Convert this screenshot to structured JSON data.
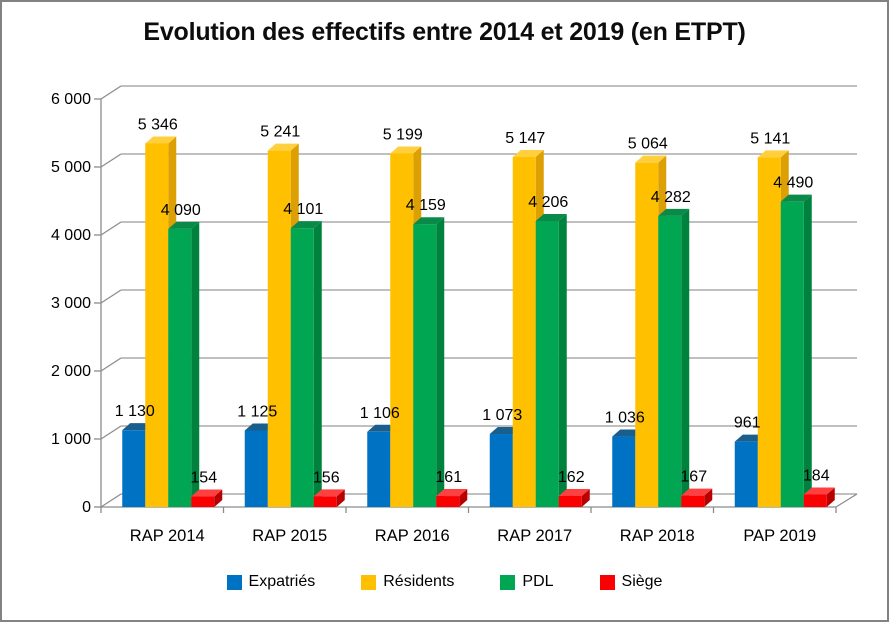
{
  "chart_data": {
    "type": "bar",
    "style": "3d-clustered-column",
    "title": "Evolution des effectifs entre 2014 et 2019 (en ETPT)",
    "categories": [
      "RAP 2014",
      "RAP 2015",
      "RAP 2016",
      "RAP 2017",
      "RAP 2018",
      "PAP 2019"
    ],
    "series": [
      {
        "name": "Expatriés",
        "values": [
          1130,
          1125,
          1106,
          1073,
          1036,
          961
        ],
        "color": "#0072C4",
        "top": "#1A5E8E",
        "side": "#00599B"
      },
      {
        "name": "Résidents",
        "values": [
          5346,
          5241,
          5199,
          5147,
          5064,
          5141
        ],
        "color": "#FFC000",
        "top": "#FFCF3D",
        "side": "#DC9F04"
      },
      {
        "name": "PDL",
        "values": [
          4090,
          4101,
          4159,
          4206,
          4282,
          4490
        ],
        "color": "#00A651",
        "top": "#0A8A48",
        "side": "#00823F"
      },
      {
        "name": "Siège",
        "values": [
          154,
          156,
          161,
          162,
          167,
          184
        ],
        "color": "#FA0000",
        "top": "#FF4040",
        "side": "#B80000"
      }
    ],
    "y_axis": {
      "min": 0,
      "max": 6000,
      "step": 1000,
      "tick_labels": [
        "0",
        "1 000",
        "2 000",
        "3 000",
        "4 000",
        "5 000",
        "6 000"
      ]
    },
    "number_format": "space-thousands",
    "gridlines": true,
    "legend_position": "bottom",
    "colors": {
      "grid": "#9A9A9A",
      "axis": "#8C8C8C",
      "text": "#000000",
      "background": "#FFFFFF",
      "border": "#828282"
    }
  }
}
